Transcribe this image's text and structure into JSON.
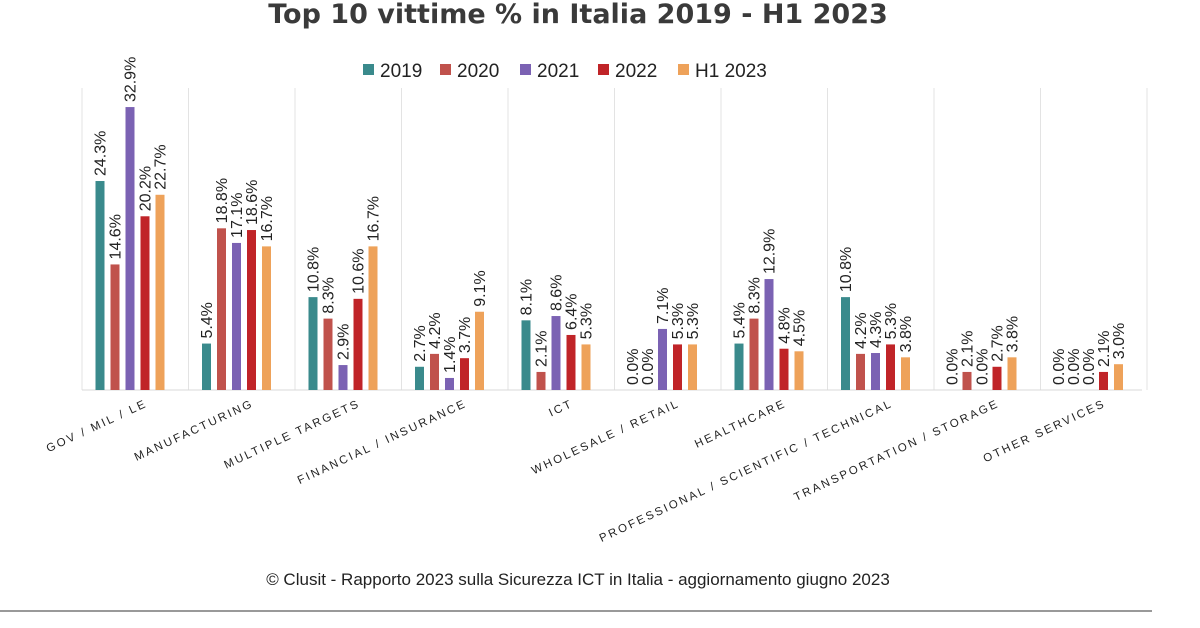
{
  "chart_data": {
    "type": "bar",
    "title": "Top 10 vittime % in Italia 2019 - H1 2023",
    "categories": [
      "GOV / MIL / LE",
      "MANUFACTURING",
      "MULTIPLE TARGETS",
      "FINANCIAL / INSURANCE",
      "ICT",
      "WHOLESALE / RETAIL",
      "HEALTHCARE",
      "PROFESSIONAL / SCIENTIFIC / TECHNICAL",
      "TRANSPORTATION / STORAGE",
      "OTHER SERVICES"
    ],
    "series": [
      {
        "name": "2019",
        "color": "#3a8a8c",
        "values": [
          24.3,
          5.4,
          10.8,
          2.7,
          8.1,
          0.0,
          5.4,
          10.8,
          0.0,
          0.0
        ],
        "labels": [
          "24.3%",
          "5.4%",
          "10.8%",
          "2.7%",
          "8.1%",
          "0.0%",
          "5.4%",
          "10.8%",
          "0.0%",
          "0.0%"
        ]
      },
      {
        "name": "2020",
        "color": "#c0524c",
        "values": [
          14.6,
          18.8,
          8.3,
          4.2,
          2.1,
          0.0,
          8.3,
          4.2,
          2.1,
          0.0
        ],
        "labels": [
          "14.6%",
          "18.8%",
          "8.3%",
          "4.2%",
          "2.1%",
          "0.0%",
          "8.3%",
          "4.2%",
          "2.1%",
          "0.0%"
        ]
      },
      {
        "name": "2021",
        "color": "#7b62b3",
        "values": [
          32.9,
          17.1,
          2.9,
          1.4,
          8.6,
          7.1,
          12.9,
          4.3,
          0.0,
          0.0
        ],
        "labels": [
          "32.9%",
          "17.1%",
          "2.9%",
          "1.4%",
          "8.6%",
          "7.1%",
          "12.9%",
          "4.3%",
          "0.0%",
          "0.0%"
        ]
      },
      {
        "name": "2022",
        "color": "#c02428",
        "values": [
          20.2,
          18.6,
          10.6,
          3.7,
          6.4,
          5.3,
          4.8,
          5.3,
          2.7,
          2.1
        ],
        "labels": [
          "20.2%",
          "18.6%",
          "10.6%",
          "3.7%",
          "6.4%",
          "5.3%",
          "4.8%",
          "5.3%",
          "2.7%",
          "2.1%"
        ]
      },
      {
        "name": "H1 2023",
        "color": "#eea25a",
        "values": [
          22.7,
          16.7,
          16.7,
          9.1,
          5.3,
          5.3,
          4.5,
          3.8,
          3.8,
          3.0
        ],
        "labels": [
          "22.7%",
          "16.7%",
          "16.7%",
          "9.1%",
          "5.3%",
          "5.3%",
          "4.5%",
          "3.8%",
          "3.8%",
          "3.0%"
        ]
      }
    ],
    "ylim": [
      0,
      35
    ],
    "legend": "top-center",
    "grid": "vertical category separators",
    "source": "© Clusit - Rapporto 2023 sulla Sicurezza ICT in Italia - aggiornamento giugno 2023"
  }
}
